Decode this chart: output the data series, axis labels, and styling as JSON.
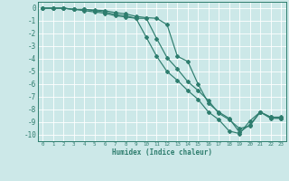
{
  "xlabel": "Humidex (Indice chaleur)",
  "background_color": "#cce8e8",
  "grid_color": "#ffffff",
  "line_color": "#2e7d6e",
  "xlim": [
    -0.5,
    23.5
  ],
  "ylim": [
    -10.5,
    0.5
  ],
  "yticks": [
    0,
    -1,
    -2,
    -3,
    -4,
    -5,
    -6,
    -7,
    -8,
    -9,
    -10
  ],
  "xticks": [
    0,
    1,
    2,
    3,
    4,
    5,
    6,
    7,
    8,
    9,
    10,
    11,
    12,
    13,
    14,
    15,
    16,
    17,
    18,
    19,
    20,
    21,
    22,
    23
  ],
  "line1_x": [
    0,
    1,
    2,
    3,
    4,
    5,
    6,
    7,
    8,
    9,
    10,
    11,
    12,
    13,
    14,
    15,
    16,
    17,
    18,
    19,
    20,
    21,
    22,
    23
  ],
  "line1_y": [
    0,
    0,
    0,
    -0.1,
    -0.1,
    -0.15,
    -0.2,
    -0.35,
    -0.45,
    -0.65,
    -0.75,
    -0.8,
    -1.3,
    -3.8,
    -4.2,
    -6.0,
    -7.5,
    -8.2,
    -8.7,
    -9.8,
    -9.2,
    -8.2,
    -8.6,
    -8.7
  ],
  "line2_x": [
    0,
    1,
    2,
    3,
    4,
    5,
    6,
    7,
    8,
    9,
    10,
    11,
    12,
    13,
    14,
    15,
    16,
    17,
    18,
    19,
    20,
    21,
    22,
    23
  ],
  "line2_y": [
    0,
    0,
    0,
    -0.1,
    -0.1,
    -0.2,
    -0.3,
    -0.5,
    -0.6,
    -0.8,
    -0.8,
    -2.4,
    -3.9,
    -4.8,
    -5.8,
    -6.5,
    -7.3,
    -8.3,
    -8.8,
    -9.5,
    -9.3,
    -8.2,
    -8.7,
    -8.7
  ],
  "line3_x": [
    0,
    1,
    2,
    3,
    4,
    5,
    6,
    7,
    8,
    9,
    10,
    11,
    12,
    13,
    14,
    15,
    16,
    17,
    18,
    19,
    20,
    21,
    22,
    23
  ],
  "line3_y": [
    0,
    0,
    0,
    -0.1,
    -0.2,
    -0.3,
    -0.4,
    -0.6,
    -0.7,
    -0.8,
    -2.3,
    -3.8,
    -5.0,
    -5.7,
    -6.5,
    -7.2,
    -8.2,
    -8.8,
    -9.7,
    -9.9,
    -8.9,
    -8.2,
    -8.6,
    -8.6
  ]
}
